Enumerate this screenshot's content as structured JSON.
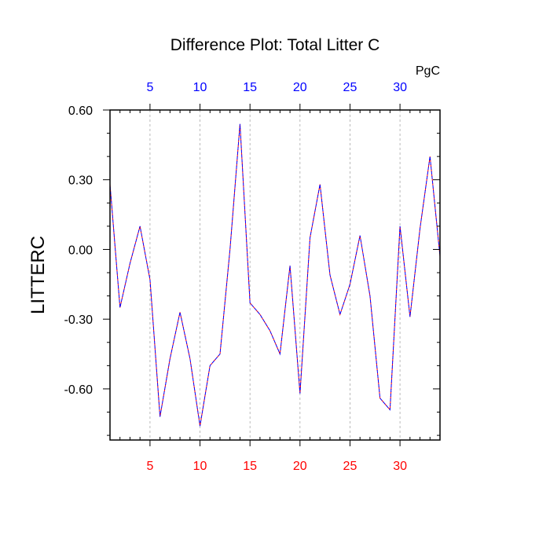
{
  "chart_data": {
    "type": "line",
    "title": "Difference Plot: Total Litter C",
    "ylabel": "LITTERC",
    "units": "PgC",
    "xlim": [
      1,
      34
    ],
    "ylim": [
      -0.82,
      0.6
    ],
    "x_ticks": [
      5,
      10,
      15,
      20,
      25,
      30
    ],
    "x_tick_labels": [
      "5",
      "10",
      "15",
      "20",
      "25",
      "30"
    ],
    "y_ticks": [
      0.6,
      0.3,
      0.0,
      -0.3,
      -0.6
    ],
    "y_tick_labels": [
      "0.60",
      "0.30",
      "0.00",
      "-0.30",
      "-0.60"
    ],
    "grid": "vertical dashed at major x ticks",
    "colors": {
      "bottom_tick_labels": "#ff0000",
      "top_tick_labels": "#0000ff",
      "series_1": "#ff0000",
      "series_2": "#0000ff"
    },
    "x": [
      1,
      2,
      3,
      4,
      5,
      6,
      7,
      8,
      9,
      10,
      11,
      12,
      13,
      14,
      15,
      16,
      17,
      18,
      19,
      20,
      21,
      22,
      23,
      24,
      25,
      26,
      27,
      28,
      29,
      30,
      31,
      32,
      33,
      34
    ],
    "series": [
      {
        "values": [
          0.28,
          -0.25,
          -0.06,
          0.1,
          -0.13,
          -0.72,
          -0.47,
          -0.27,
          -0.47,
          -0.76,
          -0.5,
          -0.45,
          0.0,
          0.54,
          -0.23,
          -0.28,
          -0.35,
          -0.45,
          -0.07,
          -0.62,
          0.05,
          0.28,
          -0.11,
          -0.28,
          -0.15,
          0.06,
          -0.2,
          -0.64,
          -0.69,
          0.1,
          -0.29,
          0.09,
          0.4,
          -0.03
        ]
      },
      {
        "values": [
          0.28,
          -0.25,
          -0.06,
          0.1,
          -0.13,
          -0.72,
          -0.47,
          -0.27,
          -0.47,
          -0.76,
          -0.5,
          -0.45,
          0.0,
          0.54,
          -0.23,
          -0.28,
          -0.35,
          -0.45,
          -0.07,
          -0.62,
          0.05,
          0.28,
          -0.11,
          -0.28,
          -0.15,
          0.06,
          -0.2,
          -0.64,
          -0.69,
          0.1,
          -0.29,
          0.09,
          0.4,
          -0.03
        ]
      }
    ]
  }
}
